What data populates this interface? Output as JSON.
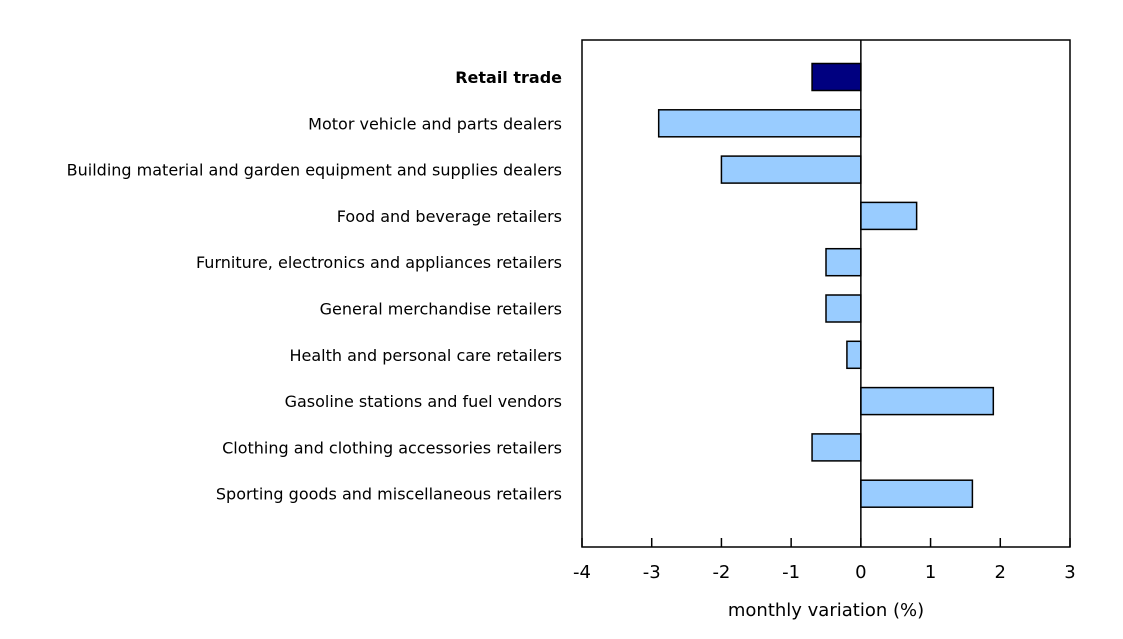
{
  "chart_data": {
    "type": "bar",
    "orientation": "horizontal",
    "categories": [
      "Retail trade",
      "Motor vehicle and parts dealers",
      "Building material and garden equipment and supplies dealers",
      "Food and beverage retailers",
      "Furniture, electronics and appliances retailers",
      "General merchandise retailers",
      "Health and personal care retailers",
      "Gasoline stations and fuel vendors",
      "Clothing and clothing accessories retailers",
      "Sporting goods and miscellaneous retailers"
    ],
    "values": [
      -0.7,
      -2.9,
      -2.0,
      0.8,
      -0.5,
      -0.5,
      -0.2,
      1.9,
      -0.7,
      1.6
    ],
    "highlight_category": "Retail trade",
    "xlabel": "monthly variation (%)",
    "ylabel": "",
    "xlim": [
      -4,
      3
    ],
    "xticks": [
      "-4",
      "-3",
      "-2",
      "-1",
      "0",
      "1",
      "2",
      "3"
    ],
    "grid": false,
    "colors": {
      "highlight": "#000080",
      "bars": "#99ccff",
      "stroke": "#000000"
    }
  }
}
